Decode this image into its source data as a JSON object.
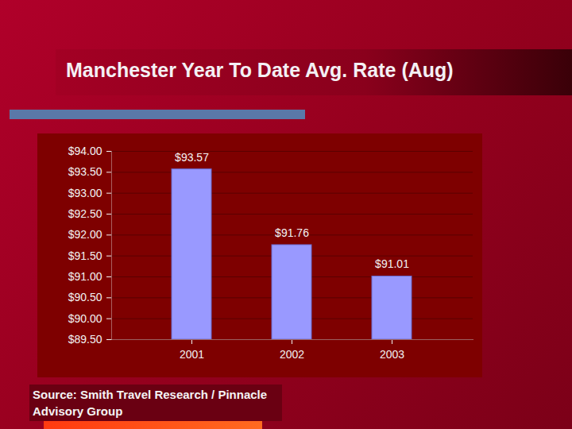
{
  "chart_data": {
    "type": "bar",
    "title": "Manchester Year To Date Avg. Rate (Aug)",
    "source": "Source: Smith Travel Research / Pinnacle Advisory Group",
    "categories": [
      "2001",
      "2002",
      "2003"
    ],
    "values": [
      93.57,
      91.76,
      91.01
    ],
    "value_labels": [
      "$93.57",
      "$91.76",
      "$91.01"
    ],
    "data_labels": true,
    "color": "#9999ff",
    "ylim": [
      89.5,
      94
    ],
    "yticks": [
      {
        "value": 89.5,
        "label": "$89.50"
      },
      {
        "value": 90,
        "label": "$90.00"
      },
      {
        "value": 90.5,
        "label": "$90.50"
      },
      {
        "value": 91,
        "label": "$91.00"
      },
      {
        "value": 91.5,
        "label": "$91.50"
      },
      {
        "value": 92,
        "label": "$92.00"
      },
      {
        "value": 92.5,
        "label": "$92.50"
      },
      {
        "value": 93,
        "label": "$93.00"
      },
      {
        "value": 93.5,
        "label": "$93.50"
      },
      {
        "value": 94,
        "label": "$94.00"
      }
    ],
    "grid": true
  }
}
